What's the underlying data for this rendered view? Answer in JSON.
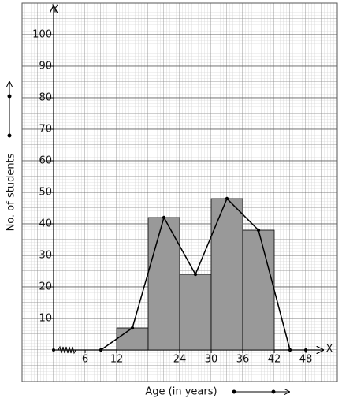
{
  "chart_data": {
    "type": "histogram",
    "x_label": "Age (in years)",
    "y_label": "No. of students",
    "x_axis_name": "X",
    "y_axis_name": "Y",
    "bins": [
      12,
      18,
      24,
      30,
      36,
      42
    ],
    "values": [
      7,
      42,
      24,
      48,
      38
    ],
    "color": "#999999",
    "frequency_polygon": {
      "x": [
        9,
        15,
        21,
        27,
        33,
        39,
        45
      ],
      "values": [
        0,
        7,
        42,
        24,
        48,
        38,
        0
      ],
      "color": "#000000"
    },
    "xlim": [
      -6,
      54
    ],
    "ylim": [
      -10,
      110
    ],
    "xticks": [
      6,
      12,
      24,
      30,
      36,
      42,
      48
    ],
    "yticks": [
      10,
      20,
      30,
      40,
      50,
      60,
      70,
      80,
      90,
      100
    ],
    "grid": true
  }
}
